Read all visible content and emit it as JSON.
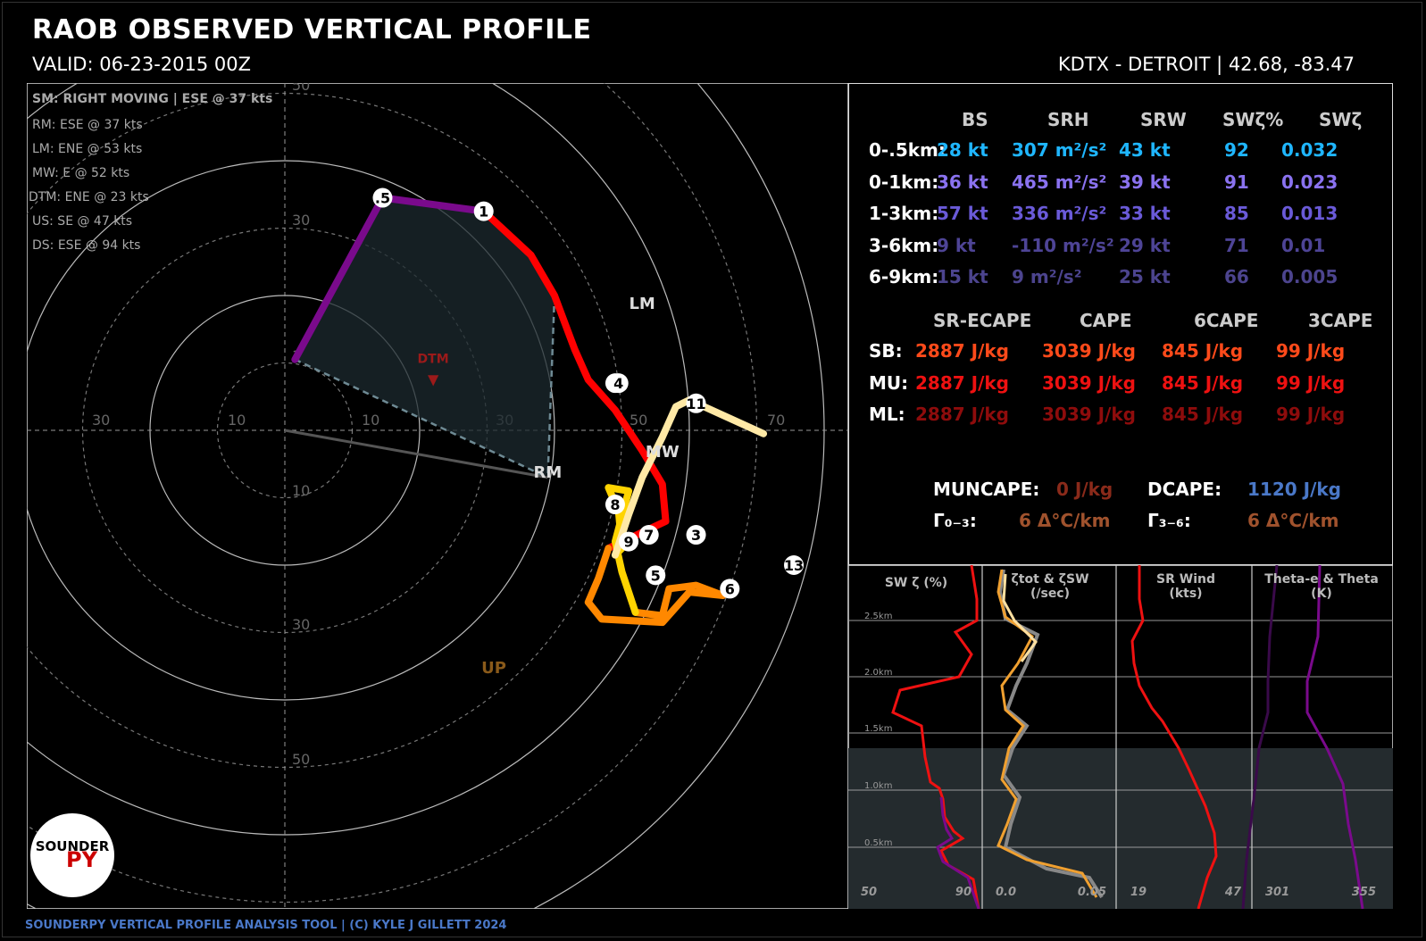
{
  "header": {
    "title": "RAOB OBSERVED VERTICAL PROFILE",
    "valid": "VALID: 06-23-2015 00Z",
    "station": "KDTX - DETROIT | 42.68, -83.47"
  },
  "footer": "SOUNDERPY VERTICAL PROFILE ANALYSIS TOOL | (C) KYLE J GILLETT 2024",
  "logo": {
    "text_top": "SOUNDER",
    "text_py": "PY"
  },
  "storm_motion": {
    "title": "SM: RIGHT MOVING | ESE @ 37 kts",
    "items": [
      "RM: ESE @ 37 kts",
      "LM: ENE @ 53 kts",
      "MW: E @ 52 kts",
      "DTM: ENE @ 23 kts",
      "US: SE @ 47 kts",
      "DS: ESE @ 94 kts"
    ]
  },
  "kinematics": {
    "headers": [
      "BS",
      "SRH",
      "SRW",
      "SWζ%",
      "SWζ"
    ],
    "rows": [
      {
        "label": "0-.5km:",
        "bs": "28 kt",
        "srh": "307 m²/s²",
        "srw": "43 kt",
        "swp": "92",
        "sw": "0.032",
        "color": "#1fb6ff"
      },
      {
        "label": "0-1km:",
        "bs": "36 kt",
        "srh": "465 m²/s²",
        "srw": "39 kt",
        "swp": "91",
        "sw": "0.023",
        "color": "#8a72f0"
      },
      {
        "label": "1-3km:",
        "bs": "57 kt",
        "srh": "336 m²/s²",
        "srw": "33 kt",
        "swp": "85",
        "sw": "0.013",
        "color": "#6a5ad8"
      },
      {
        "label": "3-6km:",
        "bs": "9 kt",
        "srh": "-110 m²/s²",
        "srw": "29 kt",
        "swp": "71",
        "sw": "0.01",
        "color": "#4e4496"
      },
      {
        "label": "6-9km:",
        "bs": "15 kt",
        "srh": "9 m²/s²",
        "srw": "25 kt",
        "swp": "66",
        "sw": "0.005",
        "color": "#4c448e"
      }
    ]
  },
  "thermo": {
    "headers": [
      "SR-ECAPE",
      "CAPE",
      "6CAPE",
      "3CAPE"
    ],
    "rows": [
      {
        "label": "SB:",
        "ecape": "2887 J/kg",
        "cape": "3039 J/kg",
        "cape6": "845 J/kg",
        "cape3": "99 J/kg",
        "color": "#ff4a1a"
      },
      {
        "label": "MU:",
        "ecape": "2887 J/kg",
        "cape": "3039 J/kg",
        "cape6": "845 J/kg",
        "cape3": "99 J/kg",
        "color": "#ee1111"
      },
      {
        "label": "ML:",
        "ecape": "2887 J/kg",
        "cape": "3039 J/kg",
        "cape6": "845 J/kg",
        "cape3": "99 J/kg",
        "color": "#8e0c0c"
      }
    ],
    "muncape_label": "MUNCAPE:",
    "muncape": "0 J/kg",
    "dcape_label": "DCAPE:",
    "dcape": "1120 J/kg",
    "lr03_label": "Γ₀₋₃:",
    "lr03": "6 Δ°C/km",
    "lr36_label": "Γ₃₋₆:",
    "lr36": "6 Δ°C/km"
  },
  "colors": {
    "purple": "#7a0a8c",
    "red": "#ff0000",
    "orange": "#ff8800",
    "yellow": "#ffd400",
    "cream": "#ffe9a6",
    "brown": "#a0522d",
    "dcape": "#4a78c8"
  },
  "chart_data": [
    {
      "type": "scatter",
      "name": "hodograph",
      "ring_labels": [
        "10",
        "30",
        "50",
        "70",
        "10",
        "30",
        "10",
        "30",
        "50",
        "30",
        "50",
        "10"
      ],
      "rings_kts": [
        10,
        20,
        30,
        40,
        50,
        60,
        70,
        80
      ],
      "hodo_points_kts": [
        [
          1.5,
          10.5
        ],
        [
          14.5,
          34.5
        ],
        [
          29.5,
          32.5
        ],
        [
          36.5,
          26
        ],
        [
          40,
          20
        ],
        [
          43,
          12
        ],
        [
          45,
          7.5
        ],
        [
          49,
          3
        ],
        [
          53,
          -3
        ],
        [
          56,
          -8
        ],
        [
          56.5,
          -13.5
        ],
        [
          48,
          -17.5
        ],
        [
          46.5,
          -22
        ],
        [
          45,
          -25.5
        ],
        [
          47,
          -28
        ],
        [
          56,
          -28.5
        ],
        [
          60,
          -24
        ],
        [
          65,
          -24.5
        ],
        [
          61,
          -23
        ],
        [
          57,
          -23.5
        ],
        [
          56,
          -27.5
        ],
        [
          52,
          -27
        ],
        [
          51,
          -24
        ],
        [
          50,
          -21
        ],
        [
          49,
          -16.5
        ],
        [
          51,
          -9
        ],
        [
          48,
          -8.5
        ],
        [
          49.5,
          -12
        ],
        [
          50,
          -17.5
        ],
        [
          49,
          -18.5
        ],
        [
          51,
          -12.5
        ],
        [
          53,
          -7
        ],
        [
          56,
          -1
        ],
        [
          58,
          3.5
        ],
        [
          60,
          4.5
        ],
        [
          71,
          -0.5
        ]
      ],
      "labels": [
        {
          "text": ".5",
          "u": 14.5,
          "v": 34.5
        },
        {
          "text": "1",
          "u": 29.5,
          "v": 32.5
        },
        {
          "text": "2",
          "u": 49,
          "v": 7
        },
        {
          "text": "4",
          "u": 49.5,
          "v": 7
        },
        {
          "text": "11",
          "u": 61,
          "v": 4
        },
        {
          "text": "3",
          "u": 61,
          "v": -15.5
        },
        {
          "text": "8",
          "u": 49,
          "v": -11
        },
        {
          "text": "9",
          "u": 51,
          "v": -16.5
        },
        {
          "text": "7",
          "u": 54,
          "v": -15.5
        },
        {
          "text": "5",
          "u": 55,
          "v": -21.5
        },
        {
          "text": "6",
          "u": 66,
          "v": -23.5
        },
        {
          "text": "13",
          "u": 75.5,
          "v": -20
        }
      ],
      "markers": [
        {
          "text": "LM",
          "u": 53,
          "v": 18
        },
        {
          "text": "MW",
          "u": 56,
          "v": -4
        },
        {
          "text": "RM",
          "u": 39,
          "v": -7
        },
        {
          "text": "DTM",
          "u": 22,
          "v": 10
        },
        {
          "text": "UP",
          "u": 31,
          "v": -36
        }
      ]
    },
    {
      "type": "line",
      "name": "profiles",
      "panels": [
        {
          "title": "SW ζ (%)",
          "xmin": "50",
          "xmax": "90"
        },
        {
          "title": "ζtot & ζSW (/sec)",
          "xmin": "0.0",
          "xmax": "0.05"
        },
        {
          "title": "SR Wind (kts)",
          "xmin": "19",
          "xmax": "47"
        },
        {
          "title": "Theta-e & Theta (K)",
          "xmin": "301",
          "xmax": "355"
        }
      ],
      "heights": [
        "2.5km",
        "2.0km",
        "1.5km",
        "1.0km",
        "0.5km"
      ]
    }
  ]
}
